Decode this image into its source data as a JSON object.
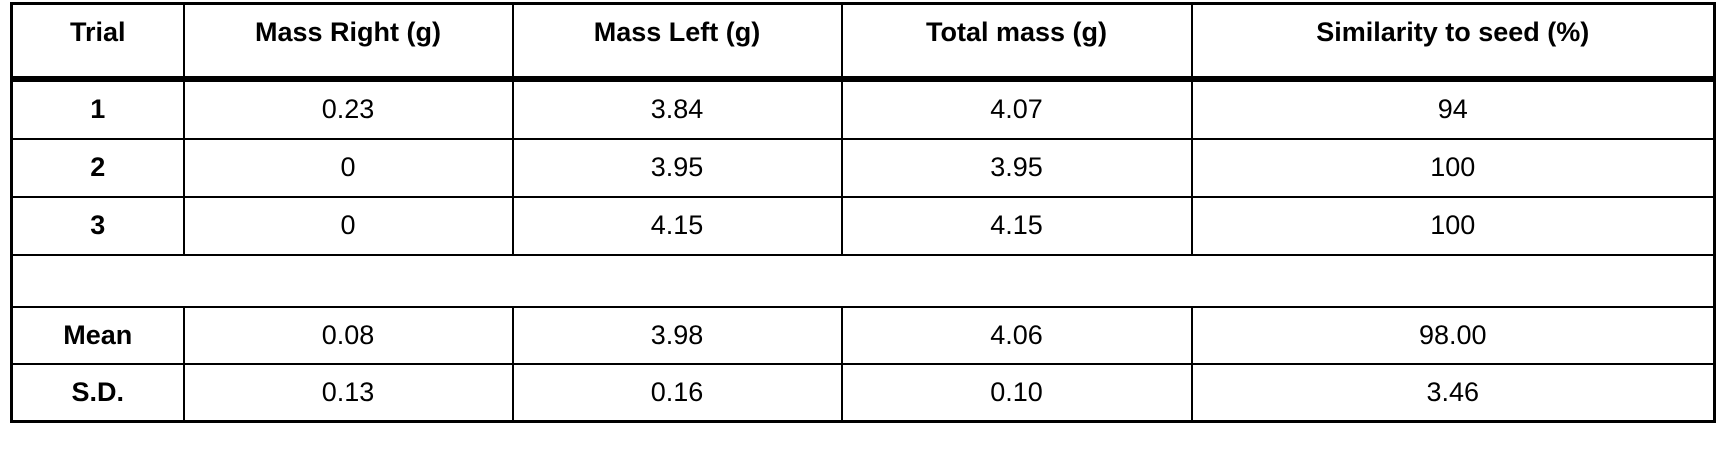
{
  "table": {
    "headers": [
      "Trial",
      "Mass Right (g)",
      "Mass Left (g)",
      "Total mass (g)",
      "Similarity to seed (%)"
    ],
    "rows": [
      {
        "trial": "1",
        "mass_right": "0.23",
        "mass_left": "3.84",
        "total_mass": "4.07",
        "similarity": "94"
      },
      {
        "trial": "2",
        "mass_right": "0",
        "mass_left": "3.95",
        "total_mass": "3.95",
        "similarity": "100"
      },
      {
        "trial": "3",
        "mass_right": "0",
        "mass_left": "4.15",
        "total_mass": "4.15",
        "similarity": "100"
      }
    ],
    "stats": [
      {
        "label": "Mean",
        "mass_right": "0.08",
        "mass_left": "3.98",
        "total_mass": "4.06",
        "similarity": "98.00"
      },
      {
        "label": "S.D.",
        "mass_right": "0.13",
        "mass_left": "0.16",
        "total_mass": "0.10",
        "similarity": "3.46"
      }
    ]
  }
}
